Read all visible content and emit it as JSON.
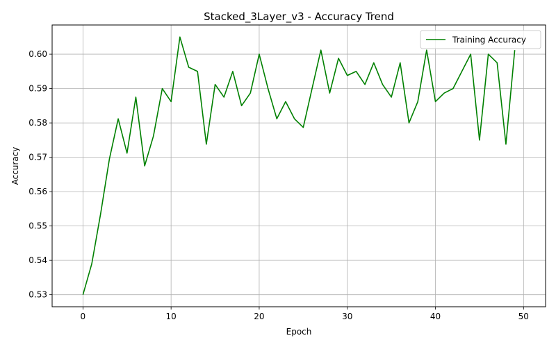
{
  "chart_data": {
    "type": "line",
    "title": "Stacked_3Layer_v3 - Accuracy Trend",
    "xlabel": "Epoch",
    "ylabel": "Accuracy",
    "xlim": [
      -3.5,
      52.5
    ],
    "ylim": [
      0.5265,
      0.6085
    ],
    "xticks": [
      0,
      10,
      20,
      30,
      40,
      50
    ],
    "yticks": [
      0.53,
      0.54,
      0.55,
      0.56,
      0.57,
      0.58,
      0.59,
      0.6
    ],
    "xtick_labels": [
      "0",
      "10",
      "20",
      "30",
      "40",
      "50"
    ],
    "ytick_labels": [
      "0.53",
      "0.54",
      "0.55",
      "0.56",
      "0.57",
      "0.58",
      "0.59",
      "0.60"
    ],
    "grid": true,
    "legend_position": "top-right",
    "series": [
      {
        "name": "Training Accuracy",
        "color": "#008000",
        "x": [
          0,
          1,
          2,
          3,
          4,
          5,
          6,
          7,
          8,
          9,
          10,
          11,
          12,
          13,
          14,
          15,
          16,
          17,
          18,
          19,
          20,
          21,
          22,
          23,
          24,
          25,
          26,
          27,
          28,
          29,
          30,
          31,
          32,
          33,
          34,
          35,
          36,
          37,
          38,
          39,
          40,
          41,
          42,
          43,
          44,
          45,
          46,
          47,
          48,
          49
        ],
        "y": [
          0.53,
          0.539,
          0.5535,
          0.5695,
          0.5812,
          0.5712,
          0.5875,
          0.5675,
          0.5762,
          0.59,
          0.5862,
          0.605,
          0.5962,
          0.595,
          0.5738,
          0.5912,
          0.5875,
          0.595,
          0.585,
          0.5887,
          0.6,
          0.59,
          0.5812,
          0.5862,
          0.5812,
          0.5787,
          0.59,
          0.6012,
          0.5887,
          0.5988,
          0.5938,
          0.595,
          0.5912,
          0.5975,
          0.5912,
          0.5875,
          0.5975,
          0.58,
          0.5862,
          0.6012,
          0.5862,
          0.5887,
          0.59,
          0.595,
          0.6,
          0.575,
          0.6,
          0.5975,
          0.5738,
          0.6012
        ]
      }
    ]
  }
}
